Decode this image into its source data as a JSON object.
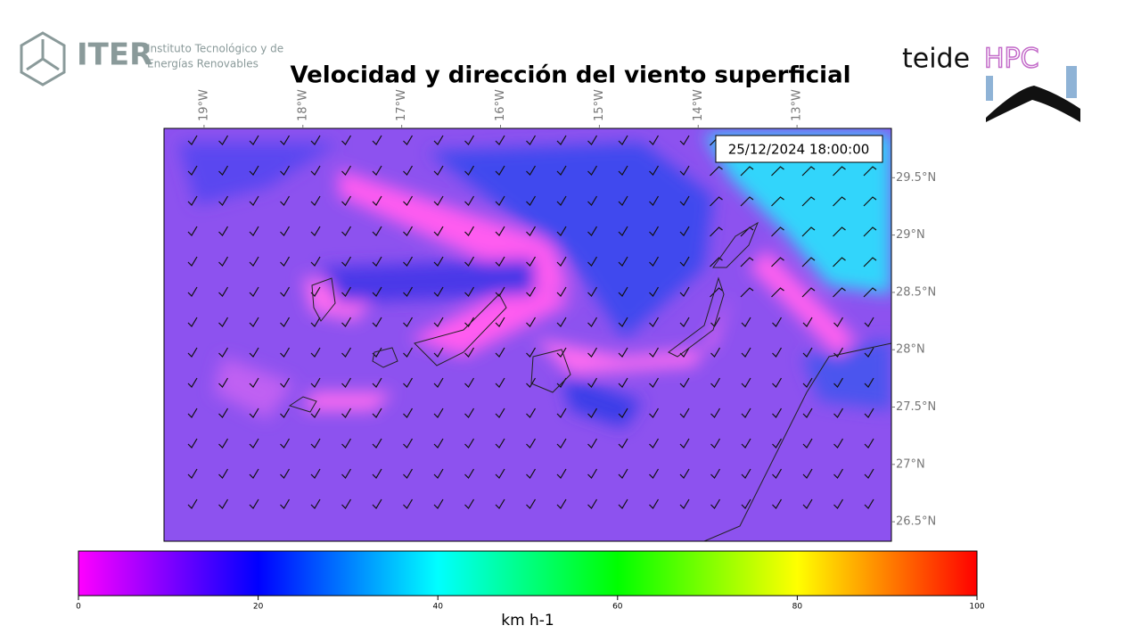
{
  "header": {
    "org": "ITER",
    "org_line1": "Instituto Tecnológico y de",
    "org_line2": "Energías Renovables",
    "partner_a": "teide",
    "partner_b": "HPC"
  },
  "chart_data": {
    "type": "map",
    "title": "Velocidad y dirección del viento superficial",
    "timestamp": "25/12/2024 18:00:00",
    "lonlim": [
      -19.405,
      -12.045
    ],
    "latlim": [
      26.33,
      29.93
    ],
    "lonticks": [
      {
        "value": -19,
        "label": "19°W"
      },
      {
        "value": -18,
        "label": "18°W"
      },
      {
        "value": -17,
        "label": "17°W"
      },
      {
        "value": -16,
        "label": "16°W"
      },
      {
        "value": -15,
        "label": "15°W"
      },
      {
        "value": -14,
        "label": "14°W"
      },
      {
        "value": -13,
        "label": "13°W"
      }
    ],
    "latticks": [
      {
        "value": 29.5,
        "label": "29.5°N"
      },
      {
        "value": 29,
        "label": "29°N"
      },
      {
        "value": 28.5,
        "label": "28.5°N"
      },
      {
        "value": 28,
        "label": "28°N"
      },
      {
        "value": 27.5,
        "label": "27.5°N"
      },
      {
        "value": 27,
        "label": "27°N"
      },
      {
        "value": 26.5,
        "label": "26.5°N"
      }
    ],
    "colorbar": {
      "lim": [
        0,
        100
      ],
      "ticks": [
        0,
        20,
        40,
        60,
        80,
        100
      ],
      "label": "km h-1",
      "colors": [
        "#ff00ff",
        "#0000ff",
        "#00ffff",
        "#00ff00",
        "#ffff00",
        "#ff0000"
      ]
    }
  }
}
